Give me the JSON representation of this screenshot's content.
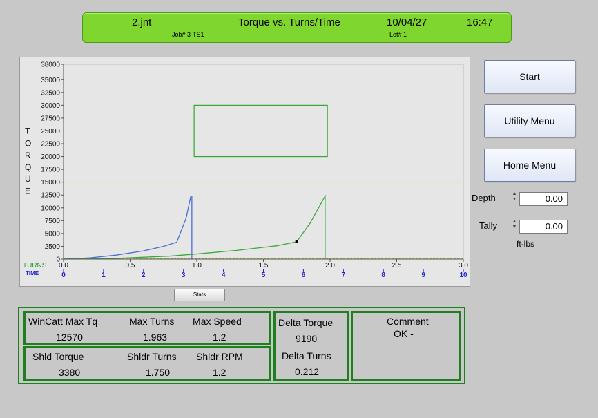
{
  "banner": {
    "file": "2.jnt",
    "title": "Torque vs. Turns/Time",
    "date": "10/04/27",
    "time": "16:47",
    "job": "Job# 3-TS1",
    "lot": "Lot# 1-"
  },
  "buttons": {
    "start": "Start",
    "utility": "Utility Menu",
    "home": "Home Menu",
    "stats": "Stats"
  },
  "fields": {
    "depth_label": "Depth",
    "depth_value": "0.00",
    "tally_label": "Tally",
    "tally_value": "0.00",
    "unit": "ft-lbs"
  },
  "stats": {
    "winCattMaxTq_label": "WinCatt Max Tq",
    "winCattMaxTq_value": "12570",
    "maxTurns_label": "Max Turns",
    "maxTurns_value": "1.963",
    "maxSpeed_label": "Max Speed",
    "maxSpeed_value": "1.2",
    "shldTorque_label": "Shld Torque",
    "shldTorque_value": "3380",
    "shldrTurns_label": "Shldr Turns",
    "shldrTurns_value": "1.750",
    "shldrRpm_label": "Shldr RPM",
    "shldrRpm_value": "1.2",
    "deltaTorque_label": "Delta Torque",
    "deltaTorque_value": "9190",
    "deltaTurns_label": "Delta Turns",
    "deltaTurns_value": "0.212",
    "comment_label": "Comment",
    "comment_value": "OK -"
  },
  "chart_data": {
    "type": "line",
    "ylabel_letters": [
      "T",
      "O",
      "R",
      "Q",
      "U",
      "E"
    ],
    "y_ticks": [
      "0",
      "2500",
      "5000",
      "7500",
      "10000",
      "12500",
      "15000",
      "17500",
      "20000",
      "22500",
      "25000",
      "27500",
      "30000",
      "32500",
      "35000",
      "38000"
    ],
    "y_tick_values": [
      0,
      2500,
      5000,
      7500,
      10000,
      12500,
      15000,
      17500,
      20000,
      22500,
      25000,
      27500,
      30000,
      32500,
      35000,
      38000
    ],
    "ylim": [
      0,
      38000
    ],
    "turns_label": "TURNS",
    "turns_ticks": [
      "0.0",
      "0.5",
      "1.0",
      "1.5",
      "2.0",
      "2.5",
      "3.0"
    ],
    "turns_tick_values": [
      0,
      0.5,
      1.0,
      1.5,
      2.0,
      2.5,
      3.0
    ],
    "xlim_turns": [
      0,
      3.0
    ],
    "time_label": "TIME",
    "time_ticks": [
      "0",
      "1",
      "2",
      "3",
      "4",
      "5",
      "6",
      "7",
      "8",
      "9",
      "10"
    ],
    "time_tick_values": [
      0,
      1,
      2,
      3,
      4,
      5,
      6,
      7,
      8,
      9,
      10
    ],
    "xlim_time": [
      0,
      10
    ],
    "reference_lines": [
      {
        "name": "upper",
        "y": 15000,
        "color": "#e8e870"
      },
      {
        "name": "lower",
        "y": 0,
        "color": "#bfbf00"
      }
    ],
    "window": {
      "x0": 0.98,
      "x1": 1.98,
      "y0": 20000,
      "y1": 30000,
      "color": "#34a534"
    },
    "series": [
      {
        "color": "#4a6fd0",
        "x": [
          0.0,
          0.2,
          0.4,
          0.6,
          0.75,
          0.85,
          0.92,
          0.955,
          0.963,
          0.963
        ],
        "y": [
          0,
          250,
          800,
          1600,
          2500,
          3300,
          8000,
          12300,
          12300,
          0
        ]
      },
      {
        "color": "#3aa83a",
        "x": [
          0.0,
          0.4,
          0.8,
          1.0,
          1.3,
          1.6,
          1.75,
          1.85,
          1.963,
          1.963
        ],
        "y": [
          0,
          150,
          600,
          1000,
          1700,
          2600,
          3380,
          7000,
          12300,
          0
        ]
      }
    ],
    "shoulder_marker": {
      "x": 1.75,
      "y": 3380,
      "color": "#000000"
    },
    "colors": {
      "plot_bg": "#e6e6e6",
      "axis": "#555555",
      "tick_text": "#111111",
      "turns_label": "#1a9a1a",
      "time_label": "#2222cc",
      "time_ticks": "#2222cc"
    }
  }
}
